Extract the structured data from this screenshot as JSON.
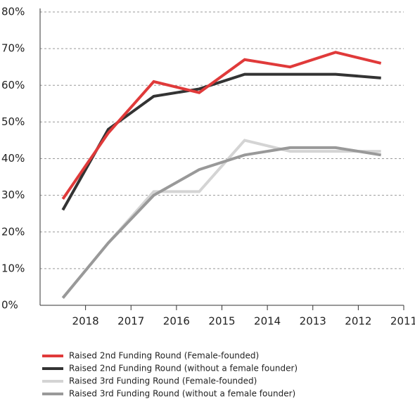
{
  "chart_data": {
    "type": "line",
    "x": [
      2018.5,
      2017.5,
      2016.5,
      2015.5,
      2014.5,
      2013.5,
      2012.5,
      2011.5
    ],
    "xlim": [
      2019,
      2011
    ],
    "xticks": [
      2018,
      2017,
      2016,
      2015,
      2014,
      2013,
      2012,
      2011
    ],
    "ylim": [
      0,
      80
    ],
    "yticks": [
      {
        "value": 0,
        "label": "0%"
      },
      {
        "value": 10,
        "label": "10%"
      },
      {
        "value": 20,
        "label": "20%"
      },
      {
        "value": 30,
        "label": "30%"
      },
      {
        "value": 40,
        "label": "40%"
      },
      {
        "value": 50,
        "label": "50%"
      },
      {
        "value": 60,
        "label": "60%"
      },
      {
        "value": 70,
        "label": "70%"
      },
      {
        "value": 80,
        "label": "80%"
      }
    ],
    "grid": true,
    "legend": "bottom",
    "series": [
      {
        "name": "Raised 2nd Funding Round (Female-founded)",
        "color": "#e03a3a",
        "values": [
          29,
          47,
          61,
          58,
          67,
          65,
          69,
          66
        ]
      },
      {
        "name": "Raised 2nd Funding Round (without a female founder)",
        "color": "#333333",
        "values": [
          26,
          48,
          57,
          59,
          63,
          63,
          63,
          62
        ]
      },
      {
        "name": "Raised 3rd Funding Round (Female-founded)",
        "color": "#d4d4d4",
        "values": [
          2,
          17,
          31,
          31,
          45,
          42,
          42,
          42
        ]
      },
      {
        "name": "Raised 3rd Funding Round (without a female founder)",
        "color": "#999999",
        "values": [
          2,
          17,
          30,
          37,
          41,
          43,
          43,
          41
        ]
      }
    ]
  }
}
